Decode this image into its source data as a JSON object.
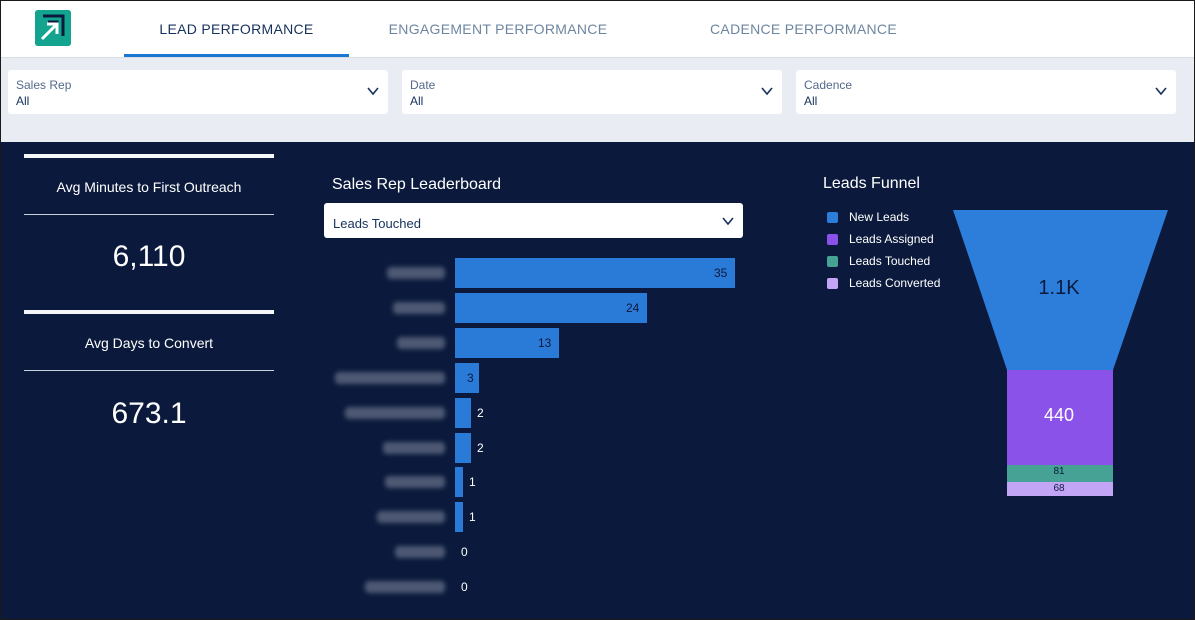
{
  "header": {
    "tabs": [
      {
        "label": "LEAD PERFORMANCE",
        "active": true
      },
      {
        "label": "ENGAGEMENT PERFORMANCE",
        "active": false
      },
      {
        "label": "CADENCE PERFORMANCE",
        "active": false
      }
    ]
  },
  "filters": [
    {
      "label": "Sales Rep",
      "value": "All"
    },
    {
      "label": "Date",
      "value": "All"
    },
    {
      "label": "Cadence",
      "value": "All"
    }
  ],
  "metrics": [
    {
      "title": "Avg Minutes to First Outreach",
      "value": "6,110"
    },
    {
      "title": "Avg Days to Convert",
      "value": "673.1"
    }
  ],
  "leaderboard": {
    "title": "Sales Rep Leaderboard",
    "selected_measure": "Leads Touched",
    "bar_color": "#2a7ad8"
  },
  "funnel": {
    "title": "Leads Funnel",
    "legend": [
      {
        "label": "New Leads",
        "color": "#2d7ddb"
      },
      {
        "label": "Leads Assigned",
        "color": "#8a52e8"
      },
      {
        "label": "Leads Touched",
        "color": "#45a295"
      },
      {
        "label": "Leads Converted",
        "color": "#c3a5f5"
      }
    ],
    "stage_labels": [
      "1.1K",
      "440",
      "81",
      "68"
    ]
  },
  "chart_data": {
    "type": "bar",
    "orientation": "horizontal",
    "title": "Sales Rep Leaderboard",
    "categories": [
      "",
      "",
      "",
      "",
      "",
      "",
      "",
      "",
      "",
      ""
    ],
    "values": [
      35,
      24,
      13,
      3,
      2,
      2,
      1,
      1,
      0,
      0
    ],
    "data_labels": [
      "35",
      "24",
      "13",
      "3",
      "2",
      "2",
      "1",
      "1",
      "0",
      "0"
    ]
  }
}
